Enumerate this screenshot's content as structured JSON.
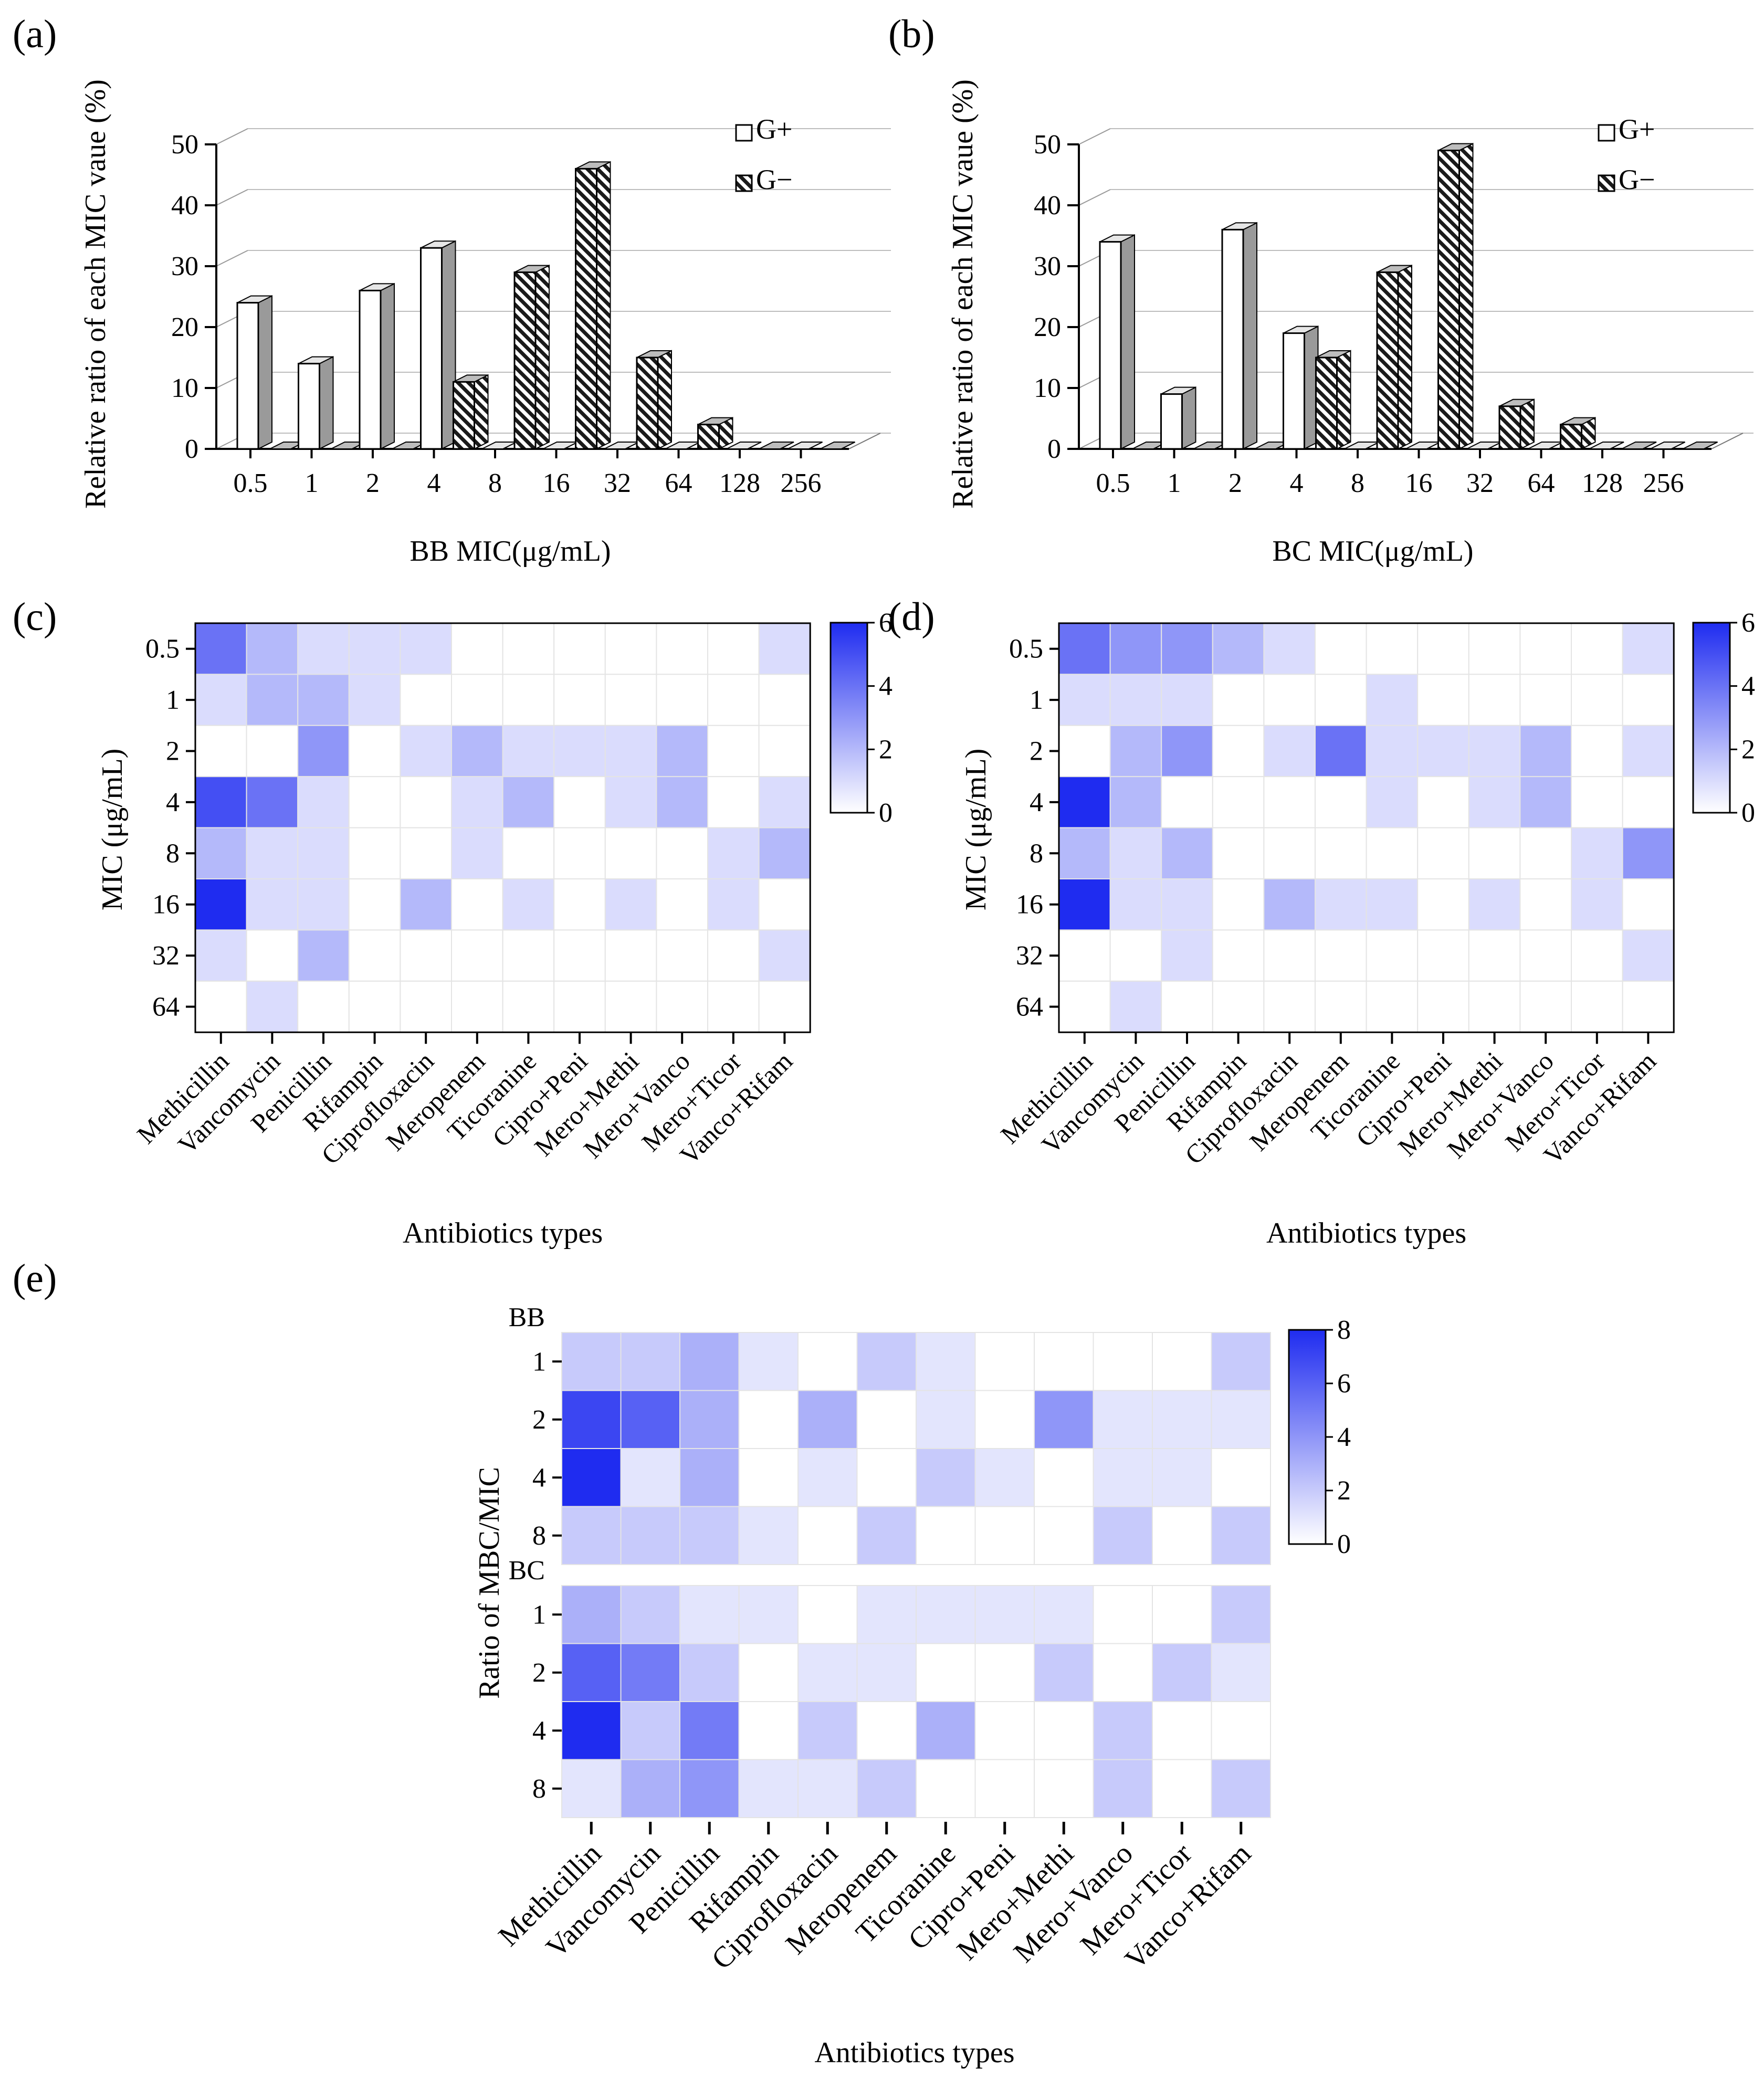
{
  "panels": {
    "a": "(a)",
    "b": "(b)",
    "c": "(c)",
    "d": "(d)",
    "e": "(e)"
  },
  "legend": {
    "gpos": "G+",
    "gneg": "G−"
  },
  "chart_data": [
    {
      "id": "a",
      "type": "bar",
      "title": "",
      "xlabel": "BB MIC(μg/mL)",
      "ylabel": "Relative ratio of  each MIC vaue (%)",
      "categories": [
        "0.5",
        "1",
        "2",
        "4",
        "8",
        "16",
        "32",
        "64",
        "128",
        "256"
      ],
      "yticks": [
        0,
        10,
        20,
        30,
        40,
        50
      ],
      "ylim": [
        0,
        50
      ],
      "series": [
        {
          "name": "G+",
          "values": [
            24,
            14,
            26,
            33,
            0,
            0,
            0,
            0,
            0,
            0
          ]
        },
        {
          "name": "G−",
          "values": [
            0,
            0,
            0,
            11,
            29,
            46,
            15,
            4,
            0,
            0
          ]
        }
      ]
    },
    {
      "id": "b",
      "type": "bar",
      "title": "",
      "xlabel": "BC MIC(μg/mL)",
      "ylabel": "Relative ratio of  each MIC vaue (%)",
      "categories": [
        "0.5",
        "1",
        "2",
        "4",
        "8",
        "16",
        "32",
        "64",
        "128",
        "256"
      ],
      "yticks": [
        0,
        10,
        20,
        30,
        40,
        50
      ],
      "ylim": [
        0,
        50
      ],
      "series": [
        {
          "name": "G+",
          "values": [
            34,
            9,
            36,
            19,
            0,
            0,
            0,
            0,
            0,
            0
          ]
        },
        {
          "name": "G−",
          "values": [
            0,
            0,
            0,
            15,
            29,
            49,
            7,
            4,
            0,
            0
          ]
        }
      ]
    },
    {
      "id": "c",
      "type": "heatmap",
      "xlabel": "Antibiotics types",
      "ylabel": "MIC (μg/mL)",
      "rows": [
        "0.5",
        "1",
        "2",
        "4",
        "8",
        "16",
        "32",
        "64"
      ],
      "columns": [
        "Methicillin",
        "Vancomycin",
        "Penicillin",
        "Rifampin",
        "Ciprofloxacin",
        "Meropenem",
        "Ticoranine",
        "Cipro+Peni",
        "Mero+Methi",
        "Mero+Vanco",
        "Mero+Ticor",
        "Vanco+Rifam"
      ],
      "values": [
        [
          4,
          2,
          1,
          1,
          1,
          0,
          0,
          0,
          0,
          0,
          0,
          1
        ],
        [
          1,
          2,
          2,
          1,
          0,
          0,
          0,
          0,
          0,
          0,
          0,
          0
        ],
        [
          0,
          0,
          3,
          0,
          1,
          2,
          1,
          1,
          1,
          2,
          0,
          0
        ],
        [
          5,
          4,
          1,
          0,
          0,
          1,
          2,
          0,
          1,
          2,
          0,
          1
        ],
        [
          2,
          1,
          1,
          0,
          0,
          1,
          0,
          0,
          0,
          0,
          1,
          2
        ],
        [
          6,
          1,
          1,
          0,
          2,
          0,
          1,
          0,
          1,
          0,
          1,
          0
        ],
        [
          1,
          0,
          2,
          0,
          0,
          0,
          0,
          0,
          0,
          0,
          0,
          1
        ],
        [
          0,
          1,
          0,
          0,
          0,
          0,
          0,
          0,
          0,
          0,
          0,
          0
        ]
      ],
      "colorbar": {
        "min": 0,
        "max": 6,
        "ticks": [
          0,
          2,
          4,
          6
        ]
      }
    },
    {
      "id": "d",
      "type": "heatmap",
      "xlabel": "Antibiotics types",
      "ylabel": "MIC (μg/mL)",
      "rows": [
        "0.5",
        "1",
        "2",
        "4",
        "8",
        "16",
        "32",
        "64"
      ],
      "columns": [
        "Methicillin",
        "Vancomycin",
        "Penicillin",
        "Rifampin",
        "Ciprofloxacin",
        "Meropenem",
        "Ticoranine",
        "Cipro+Peni",
        "Mero+Methi",
        "Mero+Vanco",
        "Mero+Ticor",
        "Vanco+Rifam"
      ],
      "values": [
        [
          4,
          3,
          3,
          2,
          1,
          0,
          0,
          0,
          0,
          0,
          0,
          1
        ],
        [
          1,
          1,
          1,
          0,
          0,
          0,
          1,
          0,
          0,
          0,
          0,
          0
        ],
        [
          0,
          2,
          3,
          0,
          1,
          4,
          1,
          1,
          1,
          2,
          0,
          1
        ],
        [
          6,
          2,
          0,
          0,
          0,
          0,
          1,
          0,
          1,
          2,
          0,
          0
        ],
        [
          2,
          1,
          2,
          0,
          0,
          0,
          0,
          0,
          0,
          0,
          1,
          3
        ],
        [
          6,
          1,
          1,
          0,
          2,
          1,
          1,
          0,
          1,
          0,
          1,
          0
        ],
        [
          0,
          0,
          1,
          0,
          0,
          0,
          0,
          0,
          0,
          0,
          0,
          1
        ],
        [
          0,
          1,
          0,
          0,
          0,
          0,
          0,
          0,
          0,
          0,
          0,
          0
        ]
      ],
      "colorbar": {
        "min": 0,
        "max": 6,
        "ticks": [
          0,
          2,
          4,
          6
        ]
      }
    },
    {
      "id": "e",
      "type": "heatmap",
      "xlabel": "Antibiotics types",
      "ylabel": "Ratio of MBC/MIC",
      "groups": [
        {
          "name": "BB",
          "rows": [
            "1",
            "2",
            "4",
            "8"
          ],
          "values": [
            [
              2,
              2,
              3,
              1,
              0,
              2,
              1,
              0,
              0,
              0,
              0,
              2
            ],
            [
              7,
              6,
              3,
              0,
              3,
              0,
              1,
              0,
              4,
              1,
              1,
              1
            ],
            [
              8,
              1,
              3,
              0,
              1,
              0,
              2,
              1,
              0,
              1,
              1,
              0
            ],
            [
              2,
              2,
              2,
              1,
              0,
              2,
              0,
              0,
              0,
              2,
              0,
              2
            ]
          ]
        },
        {
          "name": "BC",
          "rows": [
            "1",
            "2",
            "4",
            "8"
          ],
          "values": [
            [
              3,
              2,
              1,
              1,
              0,
              1,
              1,
              1,
              1,
              0,
              0,
              2
            ],
            [
              6,
              5,
              2,
              0,
              1,
              1,
              0,
              0,
              2,
              0,
              2,
              1
            ],
            [
              8,
              2,
              5,
              0,
              2,
              0,
              3,
              0,
              0,
              2,
              0,
              0
            ],
            [
              1,
              3,
              4,
              1,
              1,
              2,
              0,
              0,
              0,
              2,
              0,
              2
            ]
          ]
        }
      ],
      "columns": [
        "Methicillin",
        "Vancomycin",
        "Penicillin",
        "Rifampin",
        "Ciprofloxacin",
        "Meropenem",
        "Ticoranine",
        "Cipro+Peni",
        "Mero+Methi",
        "Mero+Vanco",
        "Mero+Ticor",
        "Vanco+Rifam"
      ],
      "colorbar": {
        "min": 0,
        "max": 8,
        "ticks": [
          0,
          2,
          4,
          6,
          8
        ]
      }
    }
  ]
}
